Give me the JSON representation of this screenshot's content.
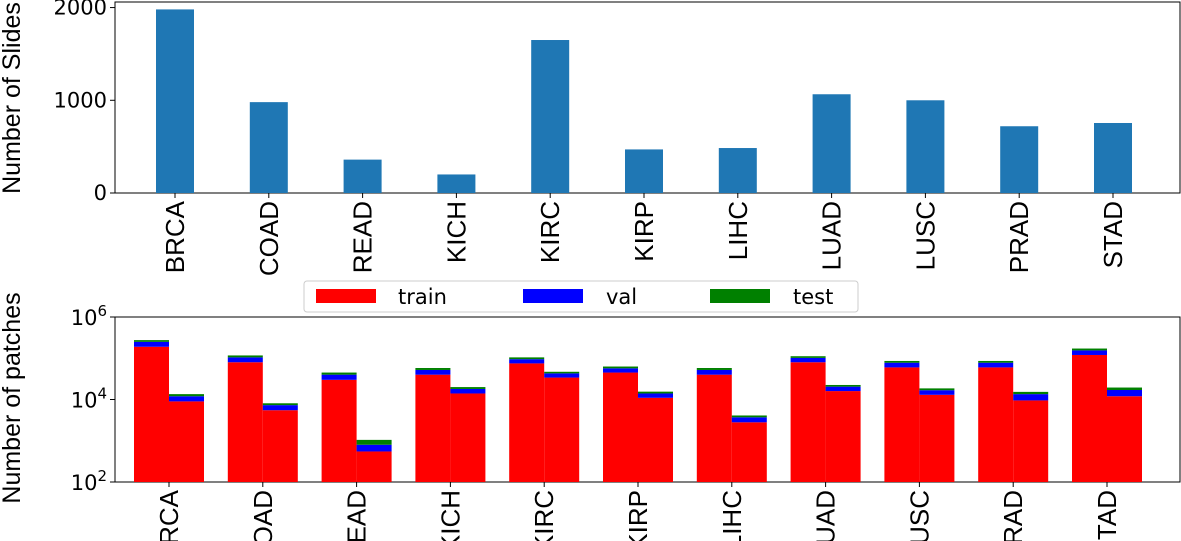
{
  "chart_data": [
    {
      "type": "bar",
      "ylabel": "Number of Slides",
      "xlabel": "",
      "categories": [
        "BRCA",
        "COAD",
        "READ",
        "KICH",
        "KIRC",
        "KIRP",
        "LIHC",
        "LUAD",
        "LUSC",
        "PRAD",
        "STAD"
      ],
      "values": [
        1980,
        980,
        360,
        200,
        1650,
        470,
        485,
        1065,
        1000,
        720,
        755
      ],
      "ylim": [
        0,
        2060
      ],
      "yticks": [
        0,
        1000,
        2000
      ],
      "ytick_labels": [
        "0",
        "1000",
        "2000"
      ],
      "grid": false,
      "colors": {
        "bar": "#1f77b4"
      }
    },
    {
      "type": "bar",
      "stacked": true,
      "y_scale": "log",
      "ylabel": "Number of patches",
      "xlabel": "",
      "categories": [
        "BRCA",
        "COAD",
        "READ",
        "KICH",
        "KIRC",
        "KIRP",
        "LIHC",
        "LUAD",
        "LUSC",
        "PRAD",
        "STAD"
      ],
      "ylim": [
        100,
        1000000
      ],
      "yticks": [
        100,
        10000,
        1000000
      ],
      "ytick_labels": [
        {
          "base": "10",
          "exp": "2"
        },
        {
          "base": "10",
          "exp": "4"
        },
        {
          "base": "10",
          "exp": "6"
        }
      ],
      "legend": {
        "position": "top-center",
        "entries": [
          "train",
          "val",
          "test"
        ]
      },
      "colors": {
        "train": "#ff0000",
        "val": "#0000ff",
        "test": "#008000"
      },
      "groups": [
        {
          "category": "BRCA",
          "bars": [
            {
              "train": 190000,
              "val": 60000,
              "test": 25000
            },
            {
              "train": 9000,
              "val": 3000,
              "test": 1500
            }
          ]
        },
        {
          "category": "COAD",
          "bars": [
            {
              "train": 80000,
              "val": 25000,
              "test": 12000
            },
            {
              "train": 5500,
              "val": 1800,
              "test": 800
            }
          ]
        },
        {
          "category": "READ",
          "bars": [
            {
              "train": 30000,
              "val": 10000,
              "test": 5000
            },
            {
              "train": 550,
              "val": 250,
              "test": 250
            }
          ]
        },
        {
          "category": "KICH",
          "bars": [
            {
              "train": 40000,
              "val": 12000,
              "test": 6000
            },
            {
              "train": 14000,
              "val": 4000,
              "test": 2000
            }
          ]
        },
        {
          "category": "KIRC",
          "bars": [
            {
              "train": 75000,
              "val": 20000,
              "test": 10000
            },
            {
              "train": 34000,
              "val": 9000,
              "test": 4000
            }
          ]
        },
        {
          "category": "KIRP",
          "bars": [
            {
              "train": 45000,
              "val": 12000,
              "test": 6000
            },
            {
              "train": 11000,
              "val": 3000,
              "test": 1500
            }
          ]
        },
        {
          "category": "LIHC",
          "bars": [
            {
              "train": 40000,
              "val": 12000,
              "test": 6000
            },
            {
              "train": 2800,
              "val": 900,
              "test": 400
            }
          ]
        },
        {
          "category": "LUAD",
          "bars": [
            {
              "train": 80000,
              "val": 22000,
              "test": 10000
            },
            {
              "train": 16000,
              "val": 4500,
              "test": 2000
            }
          ]
        },
        {
          "category": "LUSC",
          "bars": [
            {
              "train": 60000,
              "val": 18000,
              "test": 8000
            },
            {
              "train": 13000,
              "val": 3800,
              "test": 1800
            }
          ]
        },
        {
          "category": "PRAD",
          "bars": [
            {
              "train": 60000,
              "val": 18000,
              "test": 8000
            },
            {
              "train": 9500,
              "val": 4000,
              "test": 1800
            }
          ]
        },
        {
          "category": "STAD",
          "bars": [
            {
              "train": 120000,
              "val": 35000,
              "test": 17000
            },
            {
              "train": 12000,
              "val": 5000,
              "test": 2500
            }
          ]
        }
      ]
    }
  ]
}
